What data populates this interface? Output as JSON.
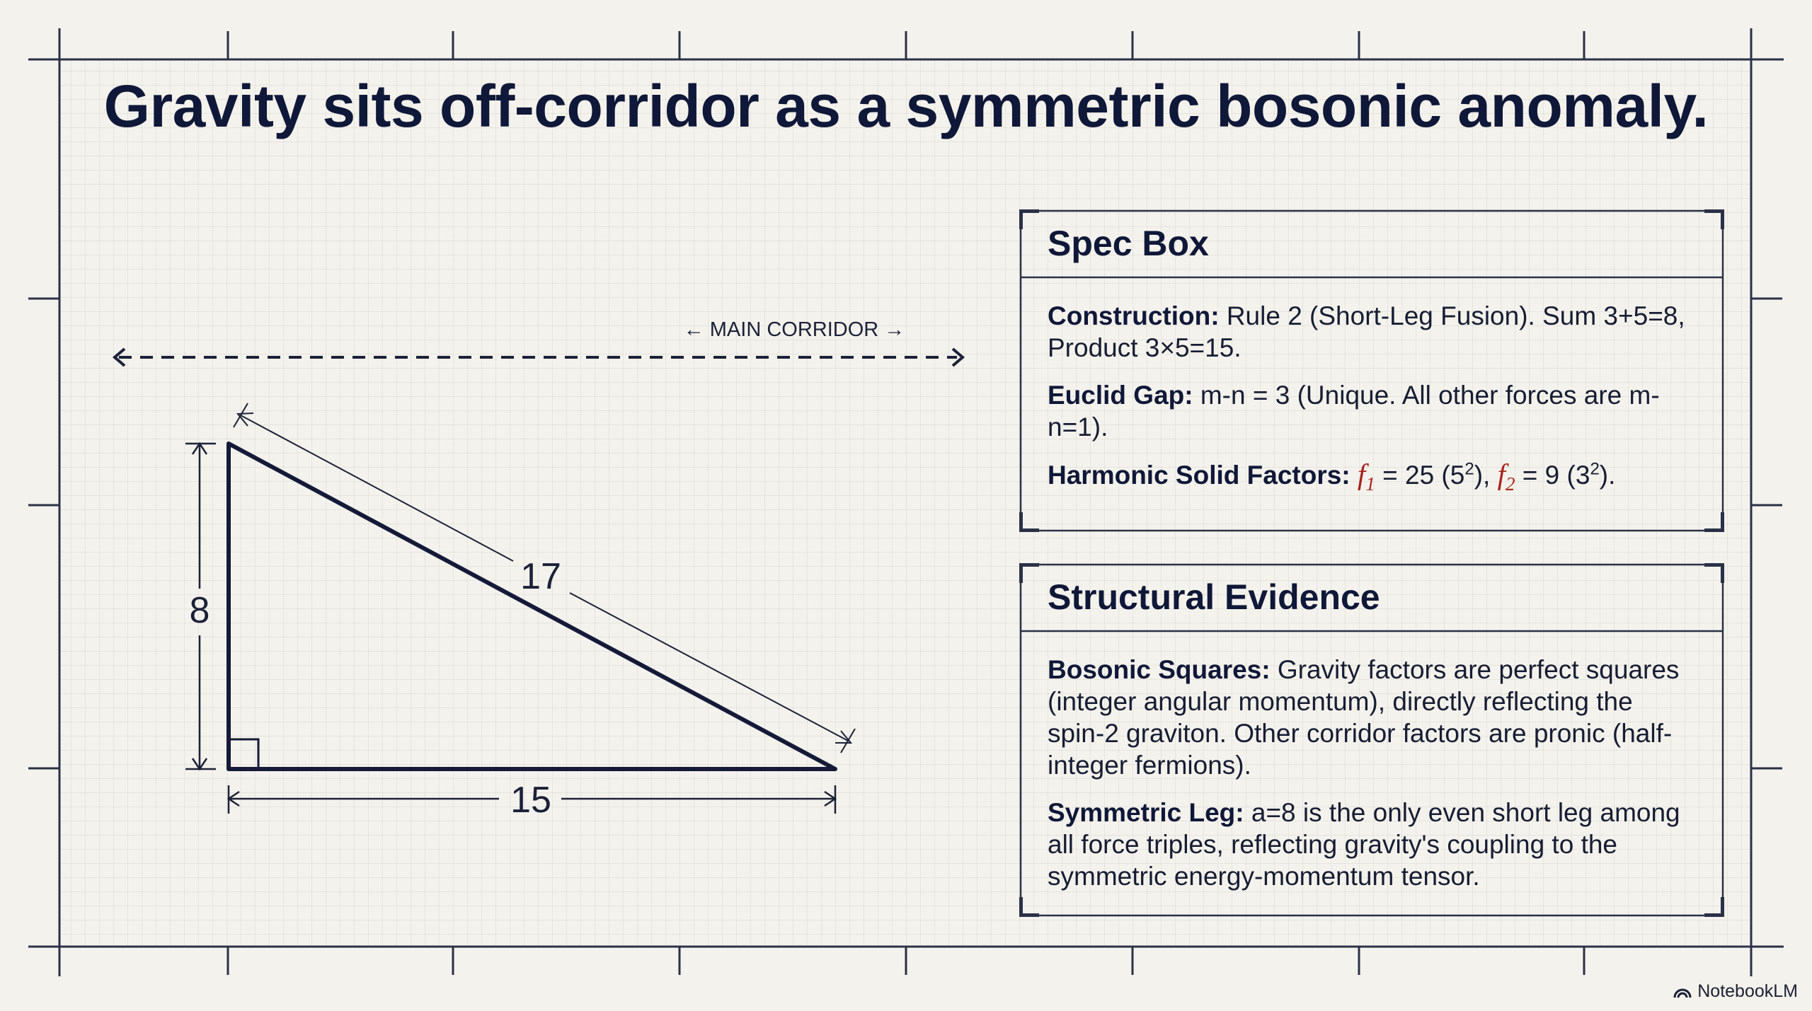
{
  "title": "Gravity sits off-corridor as a symmetric bosonic anomaly.",
  "diagram": {
    "corridor_label": "← MAIN CORRIDOR →",
    "side_labels": {
      "vertical": "8",
      "horizontal": "15",
      "hypotenuse": "17"
    }
  },
  "spec_box": {
    "heading": "Spec Box",
    "construction": {
      "label": "Construction:",
      "text": "Rule 2 (Short-Leg Fusion). Sum 3+5=8, Product 3×5=15."
    },
    "euclid_gap": {
      "label": "Euclid Gap:",
      "text": "m-n = 3 (Unique. All other forces are m-n=1)."
    },
    "harmonic": {
      "label": "Harmonic Solid Factors:",
      "f1_symbol": "f",
      "f1_index": "1",
      "f1_value": "= 25 (5",
      "f1_exp": "2",
      "f1_close": "),",
      "f2_symbol": "f",
      "f2_index": "2",
      "f2_value": "= 9 (3",
      "f2_exp": "2",
      "f2_close": ")."
    }
  },
  "evidence_box": {
    "heading": "Structural Evidence",
    "bosonic": {
      "label": "Bosonic Squares:",
      "text": "Gravity factors are perfect squares (integer angular momentum), directly reflecting the spin-2 graviton. Other corridor factors are pronic (half-integer fermions)."
    },
    "symmetric": {
      "label": "Symmetric Leg:",
      "text": "a=8 is the only even short leg among all force triples, reflecting gravity's coupling to the symmetric energy-momentum tensor."
    }
  },
  "footer": {
    "brand": "NotebookLM"
  },
  "colors": {
    "background": "#f4f2ec",
    "ink": "#0f1838",
    "grid": "#d6d6d6",
    "accent": "#a8221a"
  }
}
